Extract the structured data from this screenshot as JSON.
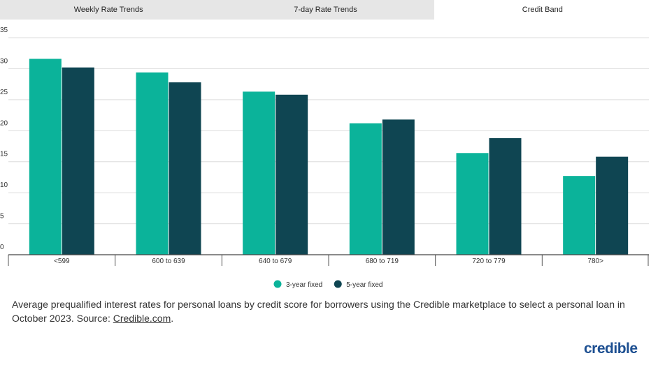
{
  "tabs": {
    "items": [
      "Weekly Rate Trends",
      "7-day Rate Trends",
      "Credit Band"
    ],
    "active": 2
  },
  "chart_data": {
    "type": "bar",
    "categories": [
      "<599",
      "600 to 639",
      "640 to 679",
      "680 to 719",
      "720 to 779",
      "780>"
    ],
    "series": [
      {
        "name": "3-year fixed",
        "color": "#0bb39a",
        "values": [
          31.6,
          29.4,
          26.3,
          21.2,
          16.4,
          12.7
        ]
      },
      {
        "name": "5-year fixed",
        "color": "#0f4552",
        "values": [
          30.2,
          27.8,
          25.8,
          21.8,
          18.8,
          15.8
        ]
      }
    ],
    "ylim": [
      0,
      35
    ],
    "yticks": [
      0,
      5,
      10,
      15,
      20,
      25,
      30,
      35
    ],
    "grid": true,
    "legend": "bottom"
  },
  "caption": {
    "text": "Average prequalified interest rates for personal loans by credit score for borrowers using the Credible marketplace to select a personal loan in October 2023. Source: ",
    "link": "Credible.com",
    "end": "."
  },
  "logo": "credible"
}
